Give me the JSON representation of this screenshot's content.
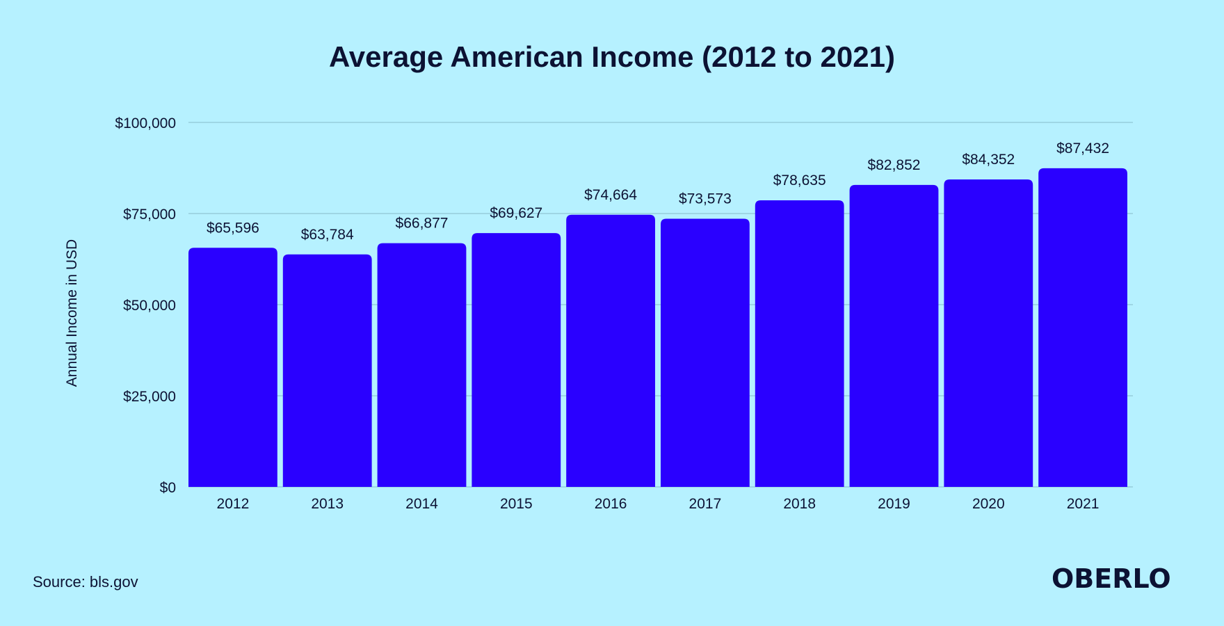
{
  "colors": {
    "background": "#b6f1ff",
    "bar": "#2a00ff",
    "gridline": "#8fc6d4",
    "text": "#0c1233"
  },
  "footer": {
    "source": "Source: bls.gov",
    "logo": "OBERLO"
  },
  "chart_data": {
    "type": "bar",
    "title": "Average American Income (2012 to 2021)",
    "xlabel": "",
    "ylabel": "Annual Income in USD",
    "categories": [
      "2012",
      "2013",
      "2014",
      "2015",
      "2016",
      "2017",
      "2018",
      "2019",
      "2020",
      "2021"
    ],
    "values": [
      65596,
      63784,
      66877,
      69627,
      74664,
      73573,
      78635,
      82852,
      84352,
      87432
    ],
    "value_labels": [
      "$65,596",
      "$63,784",
      "$66,877",
      "$69,627",
      "$74,664",
      "$73,573",
      "$78,635",
      "$82,852",
      "$84,352",
      "$87,432"
    ],
    "ylim": [
      0,
      100000
    ],
    "yticks": [
      0,
      25000,
      50000,
      75000,
      100000
    ],
    "ytick_labels": [
      "$0",
      "$25,000",
      "$50,000",
      "$75,000",
      "$100,000"
    ],
    "grid": true,
    "legend": "none"
  }
}
